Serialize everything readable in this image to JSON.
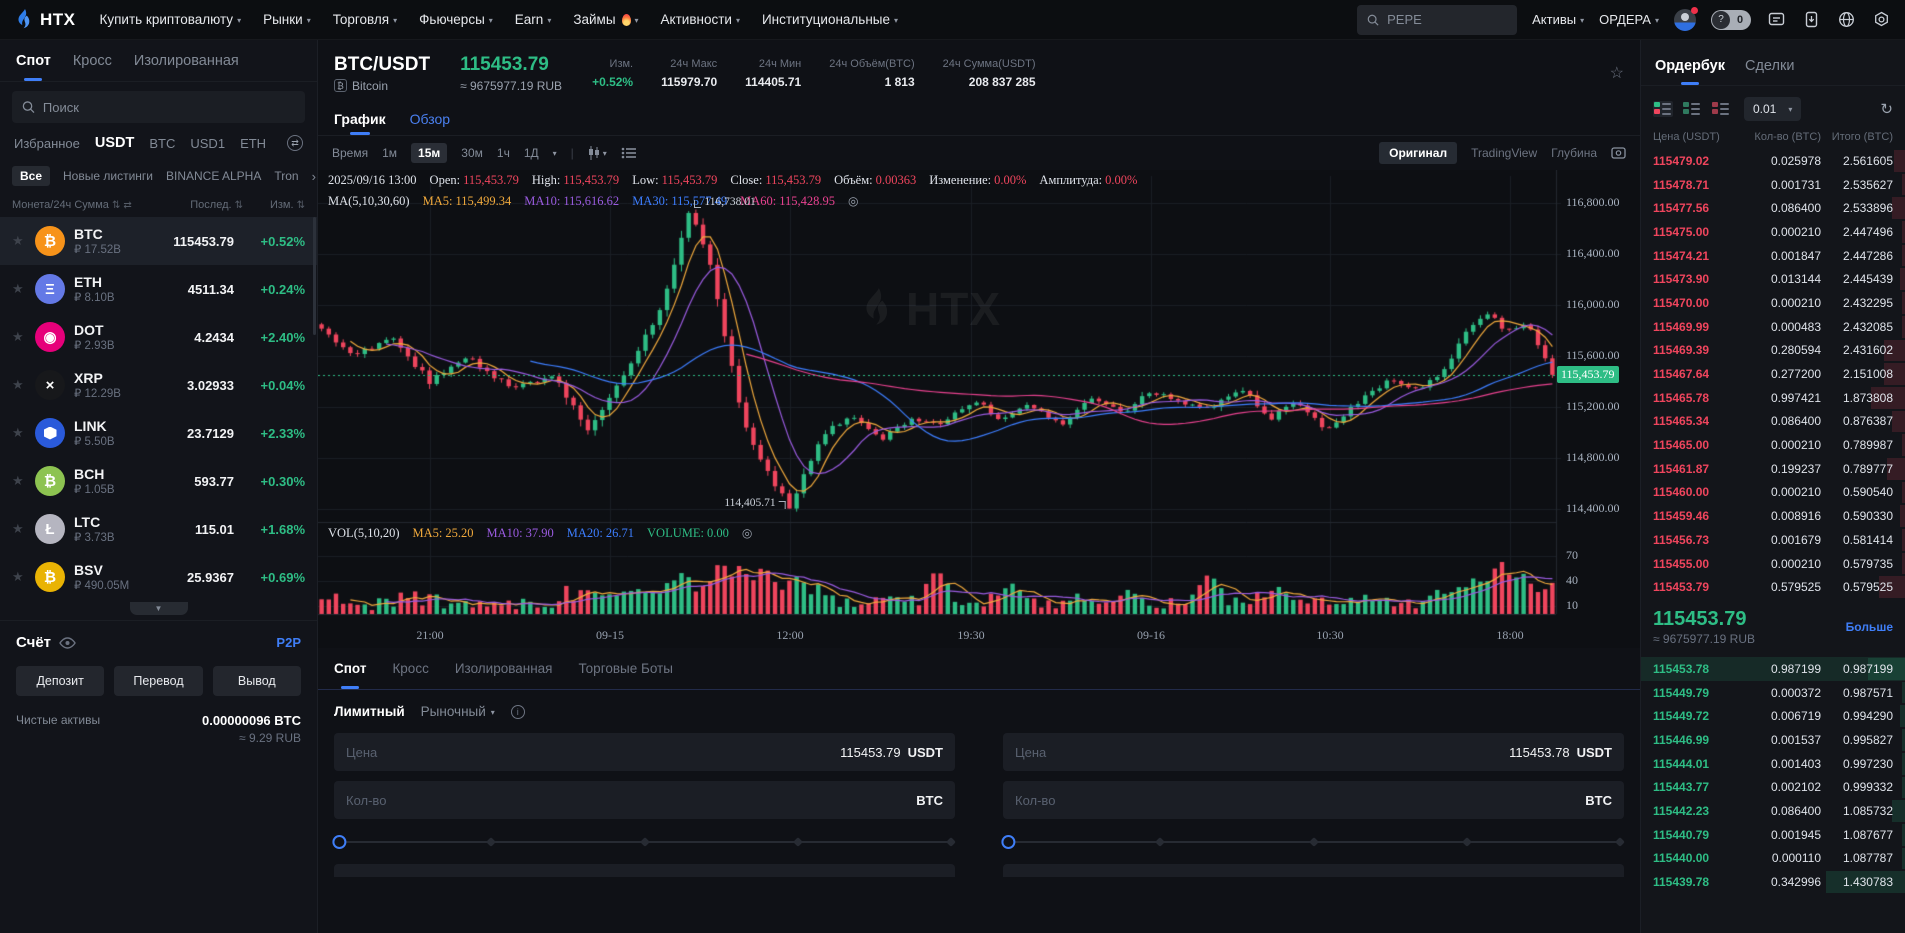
{
  "colors": {
    "green": "#2ebd85",
    "red": "#ef455d",
    "blue": "#3f7ef7",
    "btc_orange": "#f7931a",
    "ma5": "#f0a93c",
    "ma10": "#9a5be0",
    "ma30": "#3d7eff",
    "ma60": "#e8418f"
  },
  "navbar": {
    "logo_text": "HTX",
    "items": [
      {
        "label": "Купить криптовалюту"
      },
      {
        "label": "Рынки"
      },
      {
        "label": "Торговля"
      },
      {
        "label": "Фьючерсы"
      },
      {
        "label": "Earn"
      },
      {
        "label": "Займы",
        "hot": true
      },
      {
        "label": "Активности"
      },
      {
        "label": "Институциональные"
      }
    ],
    "search_placeholder": "PEPE",
    "assets_label": "Активы",
    "orders_label": "ОРДЕРА",
    "balance_pill_value": "0",
    "icon_names": [
      "search-icon",
      "user-avatar",
      "mode-toggle",
      "chat-icon",
      "app-download-icon",
      "globe-icon",
      "settings-icon"
    ]
  },
  "sidebar": {
    "tabs": [
      {
        "label": "Спот",
        "active": true
      },
      {
        "label": "Кросс"
      },
      {
        "label": "Изолированная"
      }
    ],
    "search_placeholder": "Поиск",
    "quote_tabs": [
      {
        "label": "Избранное"
      },
      {
        "label": "USDT",
        "active": true
      },
      {
        "label": "BTC"
      },
      {
        "label": "USD1"
      },
      {
        "label": "ETH"
      }
    ],
    "categories": [
      {
        "label": "Все",
        "active": true
      },
      {
        "label": "Новые листинги"
      },
      {
        "label": "BINANCE ALPHA"
      },
      {
        "label": "Tron"
      }
    ],
    "more_arrow": "›",
    "columns": {
      "left": "Монета/24ч Сумма",
      "mid": "Послед.",
      "right": "Изм."
    },
    "coins": [
      {
        "symbol": "BTC",
        "turnover": "₽ 17.52B",
        "last": "115453.79",
        "change": "+0.52%",
        "icon_bg": "#f7931a",
        "glyph": "₿",
        "selected": true
      },
      {
        "symbol": "ETH",
        "turnover": "₽ 8.10B",
        "last": "4511.34",
        "change": "+0.24%",
        "icon_bg": "#6479e6",
        "glyph": "Ξ"
      },
      {
        "symbol": "DOT",
        "turnover": "₽ 2.93B",
        "last": "4.2434",
        "change": "+2.40%",
        "icon_bg": "#e6007a",
        "glyph": "◉"
      },
      {
        "symbol": "XRP",
        "turnover": "₽ 12.29B",
        "last": "3.02933",
        "change": "+0.04%",
        "icon_bg": "#17181b",
        "glyph": "×"
      },
      {
        "symbol": "LINK",
        "turnover": "₽ 5.50B",
        "last": "23.7129",
        "change": "+2.33%",
        "icon_bg": "#2a5ada",
        "glyph": "",
        "hex": true
      },
      {
        "symbol": "BCH",
        "turnover": "₽ 1.05B",
        "last": "593.77",
        "change": "+0.30%",
        "icon_bg": "#8dc351",
        "glyph": "₿"
      },
      {
        "symbol": "LTC",
        "turnover": "₽ 3.73B",
        "last": "115.01",
        "change": "+1.68%",
        "icon_bg": "#b5b5c0",
        "glyph": "Ł"
      },
      {
        "symbol": "BSV",
        "turnover": "₽ 490.05M",
        "last": "25.9367",
        "change": "+0.69%",
        "icon_bg": "#e9b304",
        "glyph": "₿"
      }
    ],
    "account": {
      "title": "Счёт",
      "p2p": "P2P",
      "buttons": [
        "Депозит",
        "Перевод",
        "Вывод"
      ],
      "net_label": "Чистые активы",
      "net_btc": "0.00000096 BTC",
      "net_rub": "≈ 9.29 RUB"
    }
  },
  "market_header": {
    "pair": "BTC/USDT",
    "coin": "Bitcoin",
    "price": "115453.79",
    "rub": "≈ 9675977.19 RUB",
    "stats": [
      {
        "label": "Изм.",
        "value": "+0.52%",
        "green": true
      },
      {
        "label": "24ч Макс",
        "value": "115979.70"
      },
      {
        "label": "24ч Мин",
        "value": "114405.71"
      },
      {
        "label": "24ч Объём(BTC)",
        "value": "1 813"
      },
      {
        "label": "24ч Сумма(USDT)",
        "value": "208 837 285"
      }
    ]
  },
  "chart": {
    "tabs": [
      {
        "label": "График",
        "active": true
      },
      {
        "label": "Обзор"
      }
    ],
    "intervals": [
      {
        "label": "Время"
      },
      {
        "label": "1м"
      },
      {
        "label": "15м",
        "active": true
      },
      {
        "label": "30м"
      },
      {
        "label": "1ч"
      },
      {
        "label": "1Д"
      }
    ],
    "view_tabs": [
      {
        "label": "Оригинал",
        "active": true
      },
      {
        "label": "TradingView"
      },
      {
        "label": "Глубина"
      }
    ],
    "ohlc_items": [
      {
        "value": "2025/09/16 13:00"
      },
      {
        "label": "Open: ",
        "value": "115,453.79",
        "red": true
      },
      {
        "label": "High: ",
        "value": "115,453.79",
        "red": true
      },
      {
        "label": "Low: ",
        "value": "115,453.79",
        "red": true
      },
      {
        "label": "Close: ",
        "value": "115,453.79",
        "red": true
      },
      {
        "label": "Объём: ",
        "value": "0.00363",
        "red": true
      },
      {
        "label": "Изменение: ",
        "value": "0.00%",
        "red": true
      },
      {
        "label": "Амплитуда: ",
        "value": "0.00%",
        "red": true
      }
    ],
    "ma_items": [
      {
        "label": "MA(5,10,30,60)"
      },
      {
        "label": "MA5: ",
        "value": "115,499.34",
        "color": "#f0a93c"
      },
      {
        "label": "MA10: ",
        "value": "115,616.62",
        "color": "#9a5be0"
      },
      {
        "label": "MA30: ",
        "value": "115,577.49",
        "color": "#3d7eff"
      },
      {
        "label": "MA60: ",
        "value": "115,428.95",
        "color": "#e8418f"
      }
    ],
    "vol_items": [
      {
        "label": "VOL(5,10,20)"
      },
      {
        "label": "MA5: ",
        "value": "25.20",
        "color": "#f0a93c"
      },
      {
        "label": "MA10: ",
        "value": "37.90",
        "color": "#9a5be0"
      },
      {
        "label": "MA20: ",
        "value": "26.71",
        "color": "#3d7eff"
      },
      {
        "label": "VOLUME: ",
        "value": "0.00",
        "color": "#2ebd85"
      }
    ],
    "annotation_high": "116,738.01",
    "annotation_low": "114,405.71",
    "price_tag": "115,453.79",
    "watermark": "HTX"
  },
  "chart_data": {
    "type": "candlestick",
    "pair": "BTC/USDT",
    "interval": "15m",
    "last_price": 115453.79,
    "price_axis": {
      "labels": [
        "116,800.00",
        "116,400.00",
        "116,000.00",
        "115,600.00",
        "115,200.00",
        "114,800.00",
        "114,400.00"
      ],
      "values": [
        116800,
        116400,
        116000,
        115600,
        115200,
        114800,
        114400
      ],
      "domain": [
        114300,
        116950
      ]
    },
    "volume_axis": {
      "labels": [
        "70",
        "40",
        "10"
      ],
      "values": [
        70,
        40,
        10
      ]
    },
    "time_axis": [
      "21:00",
      "09-15",
      "12:00",
      "19:30",
      "09-16",
      "10:30",
      "18:00"
    ],
    "high_point": {
      "t": 0.3,
      "price": 116738.01
    },
    "low_point": {
      "t": 0.381,
      "price": 114405.71
    },
    "waypoints": [
      [
        0,
        115850
      ],
      [
        0.03,
        115600
      ],
      [
        0.06,
        115750
      ],
      [
        0.09,
        115400
      ],
      [
        0.12,
        115600
      ],
      [
        0.155,
        115350
      ],
      [
        0.19,
        115450
      ],
      [
        0.219,
        115000
      ],
      [
        0.252,
        115550
      ],
      [
        0.276,
        115950
      ],
      [
        0.3,
        116738
      ],
      [
        0.316,
        116350
      ],
      [
        0.332,
        115600
      ],
      [
        0.345,
        115050
      ],
      [
        0.36,
        114750
      ],
      [
        0.381,
        114406
      ],
      [
        0.405,
        114950
      ],
      [
        0.43,
        115150
      ],
      [
        0.455,
        114950
      ],
      [
        0.48,
        115120
      ],
      [
        0.5,
        115050
      ],
      [
        0.53,
        115260
      ],
      [
        0.55,
        115120
      ],
      [
        0.575,
        115220
      ],
      [
        0.6,
        115060
      ],
      [
        0.625,
        115260
      ],
      [
        0.65,
        115160
      ],
      [
        0.67,
        115320
      ],
      [
        0.695,
        115260
      ],
      [
        0.72,
        115180
      ],
      [
        0.745,
        115360
      ],
      [
        0.77,
        115120
      ],
      [
        0.79,
        115230
      ],
      [
        0.815,
        115020
      ],
      [
        0.84,
        115230
      ],
      [
        0.865,
        115420
      ],
      [
        0.89,
        115330
      ],
      [
        0.912,
        115520
      ],
      [
        0.93,
        115840
      ],
      [
        0.945,
        115930
      ],
      [
        0.96,
        115800
      ],
      [
        0.977,
        115880
      ],
      [
        0.99,
        115580
      ],
      [
        1,
        115453.79
      ]
    ],
    "volume_spikes": [
      [
        0.3,
        34
      ],
      [
        0.36,
        60
      ],
      [
        0.385,
        48
      ],
      [
        0.5,
        55
      ],
      [
        0.56,
        38
      ],
      [
        0.655,
        30
      ],
      [
        0.72,
        50
      ],
      [
        0.775,
        34
      ],
      [
        0.905,
        30
      ],
      [
        0.935,
        46
      ],
      [
        0.955,
        66
      ],
      [
        0.972,
        52
      ]
    ]
  },
  "orderbook": {
    "tabs": [
      {
        "label": "Ордербук",
        "active": true
      },
      {
        "label": "Сделки"
      }
    ],
    "precision": "0.01",
    "headers": [
      "Цена (USDT)",
      "Кол-во (BTC)",
      "Итого (BTC)"
    ],
    "asks": [
      [
        "115479.02",
        "0.025978",
        "2.561605",
        4
      ],
      [
        "115478.71",
        "0.001731",
        "2.535627",
        1
      ],
      [
        "115477.56",
        "0.086400",
        "2.533896",
        5
      ],
      [
        "115475.00",
        "0.000210",
        "2.447496",
        1
      ],
      [
        "115474.21",
        "0.001847",
        "2.447286",
        1
      ],
      [
        "115473.90",
        "0.013144",
        "2.445439",
        2
      ],
      [
        "115470.00",
        "0.000210",
        "2.432295",
        1
      ],
      [
        "115469.99",
        "0.000483",
        "2.432085",
        1
      ],
      [
        "115469.39",
        "0.280594",
        "2.431602",
        8
      ],
      [
        "115467.64",
        "0.277200",
        "2.151008",
        8
      ],
      [
        "115465.78",
        "0.997421",
        "1.873808",
        13
      ],
      [
        "115465.34",
        "0.086400",
        "0.876387",
        5
      ],
      [
        "115465.00",
        "0.000210",
        "0.789987",
        1
      ],
      [
        "115461.87",
        "0.199237",
        "0.789777",
        7
      ],
      [
        "115460.00",
        "0.000210",
        "0.590540",
        1
      ],
      [
        "115459.46",
        "0.008916",
        "0.590330",
        2
      ],
      [
        "115456.73",
        "0.001679",
        "0.581414",
        1
      ],
      [
        "115455.00",
        "0.000210",
        "0.579735",
        1
      ],
      [
        "115453.79",
        "0.579525",
        "0.579525",
        10
      ]
    ],
    "current": {
      "price": "115453.79",
      "rub": "≈ 9675977.19 RUB",
      "more": "Больше"
    },
    "bids": [
      [
        "115453.78",
        "0.987199",
        "0.987199",
        14
      ],
      [
        "115449.79",
        "0.000372",
        "0.987571",
        1
      ],
      [
        "115449.72",
        "0.006719",
        "0.994290",
        2
      ],
      [
        "115446.99",
        "0.001537",
        "0.995827",
        1
      ],
      [
        "115444.01",
        "0.001403",
        "0.997230",
        1
      ],
      [
        "115443.77",
        "0.002102",
        "0.999332",
        1
      ],
      [
        "115442.23",
        "0.086400",
        "1.085732",
        5
      ],
      [
        "115440.79",
        "0.001945",
        "1.087677",
        1
      ],
      [
        "115440.00",
        "0.000110",
        "1.087787",
        1
      ],
      [
        "115439.78",
        "0.342996",
        "1.430783",
        30
      ]
    ],
    "flash_bid_index": 0
  },
  "trade": {
    "tabs": [
      {
        "label": "Спот",
        "active": true
      },
      {
        "label": "Кросс"
      },
      {
        "label": "Изолированная"
      },
      {
        "label": "Торговые Боты"
      }
    ],
    "order_type_active": "Лимитный",
    "order_type_dropdown": "Рыночный",
    "buy": {
      "price_label": "Цена",
      "price": "115453.79",
      "unit": "USDT",
      "qty_label": "Кол-во",
      "qty_unit": "BTC"
    },
    "sell": {
      "price_label": "Цена",
      "price": "115453.78",
      "unit": "USDT",
      "qty_label": "Кол-во",
      "qty_unit": "BTC"
    }
  }
}
